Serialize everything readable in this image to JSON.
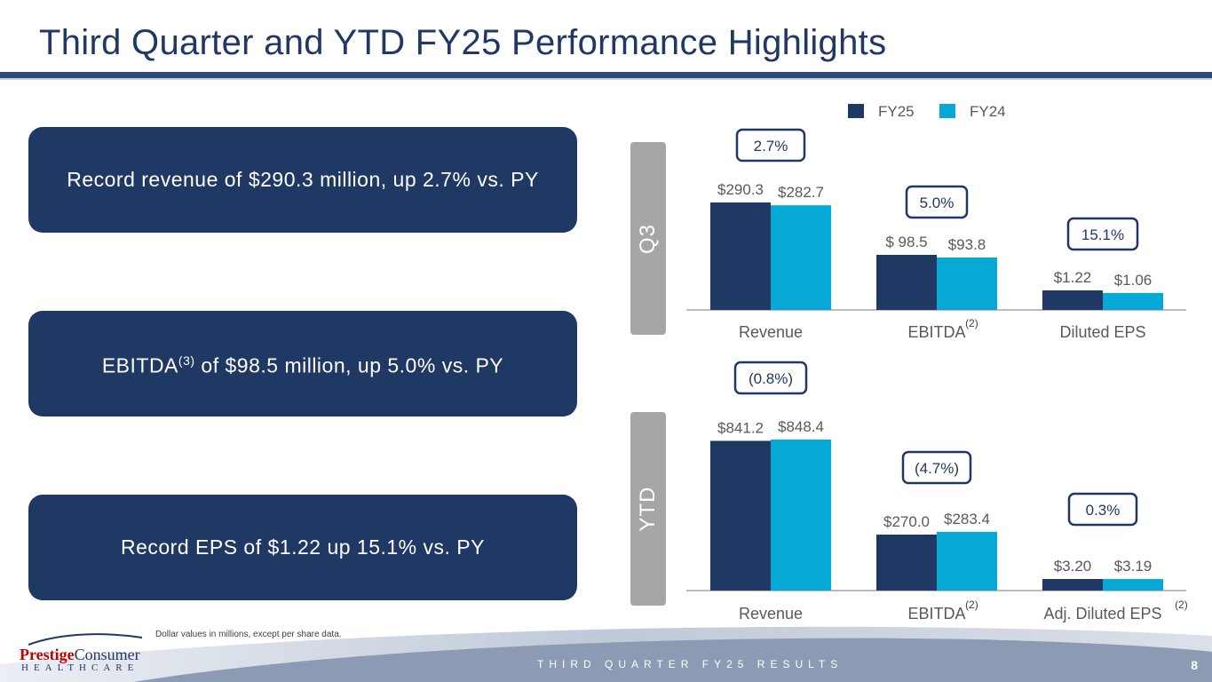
{
  "title": "Third Quarter and YTD FY25 Performance Highlights",
  "highlights": [
    {
      "text": "Record revenue of $290.3 million, up 2.7% vs. PY"
    },
    {
      "pre": "EBITDA",
      "sup": "(3)",
      "post": " of $98.5 million, up 5.0% vs. PY"
    },
    {
      "text": "Record EPS of $1.22 up 15.1% vs. PY"
    }
  ],
  "side_labels": {
    "q3": "Q3",
    "ytd": "YTD"
  },
  "footnote": "Dollar values in millions, except per share data.",
  "logo": {
    "brand_a": "Prestige",
    "brand_b": "Consumer",
    "sub": "HEALTHCARE"
  },
  "footer_text": "THIRD QUARTER FY25 RESULTS",
  "page_number": "8",
  "colors": {
    "fy25": "#1f3864",
    "fy24": "#06a9d6",
    "box": "#1f3864",
    "axis": "#a6a6a6"
  },
  "chart_data": [
    {
      "type": "bar",
      "name": "Q3",
      "legend": [
        "FY25",
        "FY24"
      ],
      "categories": [
        "Revenue",
        "EBITDA",
        "Diluted EPS"
      ],
      "category_notes": [
        "",
        "(2)",
        ""
      ],
      "series": [
        {
          "name": "FY25",
          "values": [
            290.3,
            98.5,
            1.22
          ],
          "labels": [
            "$290.3",
            "$ 98.5",
            "$1.22"
          ]
        },
        {
          "name": "FY24",
          "values": [
            282.7,
            93.8,
            1.06
          ],
          "labels": [
            "$282.7",
            "$93.8",
            "$1.06"
          ]
        }
      ],
      "changes": [
        "2.7%",
        "5.0%",
        "15.1%"
      ]
    },
    {
      "type": "bar",
      "name": "YTD",
      "categories": [
        "Revenue",
        "EBITDA",
        "Adj. Diluted EPS"
      ],
      "category_notes": [
        "",
        "(2)",
        "(2)"
      ],
      "series": [
        {
          "name": "FY25",
          "values": [
            841.2,
            270.0,
            3.2
          ],
          "labels": [
            "$841.2",
            "$270.0",
            "$3.20"
          ]
        },
        {
          "name": "FY24",
          "values": [
            848.4,
            283.4,
            3.19
          ],
          "labels": [
            "$848.4",
            "$283.4",
            "$3.19"
          ]
        }
      ],
      "changes": [
        "(0.8%)",
        "(4.7%)",
        "0.3%"
      ]
    }
  ]
}
